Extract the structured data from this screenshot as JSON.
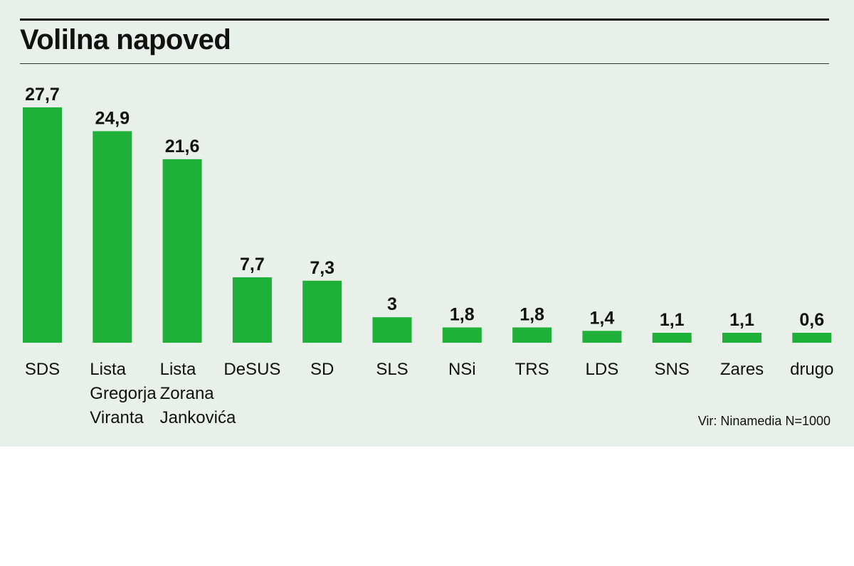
{
  "title": "Volilna napoved",
  "source": "Vir: Ninamedia N=1000",
  "colors": {
    "bar": "#1fb03a",
    "background": "#e9f0e9",
    "text": "#111111"
  },
  "chart_data": {
    "type": "bar",
    "title": "Volilna napoved",
    "categories": [
      [
        "SDS"
      ],
      [
        "Lista",
        "Gregorja",
        "Viranta"
      ],
      [
        "Lista",
        "Zorana",
        "Jankovića"
      ],
      [
        "DeSUS"
      ],
      [
        "SD"
      ],
      [
        "SLS"
      ],
      [
        "NSi"
      ],
      [
        "TRS"
      ],
      [
        "LDS"
      ],
      [
        "SNS"
      ],
      [
        "Zares"
      ],
      [
        "drugo"
      ]
    ],
    "values": [
      27.7,
      24.9,
      21.6,
      7.7,
      7.3,
      3,
      1.8,
      1.8,
      1.4,
      1.1,
      1.1,
      0.6
    ],
    "value_labels": [
      "27,7",
      "24,9",
      "21,6",
      "7,7",
      "7,3",
      "3",
      "1,8",
      "1,8",
      "1,4",
      "1,1",
      "1,1",
      "0,6"
    ],
    "ylim": [
      0,
      27.7
    ],
    "xlabel": "",
    "ylabel": "",
    "grid": false,
    "legend": "none"
  }
}
